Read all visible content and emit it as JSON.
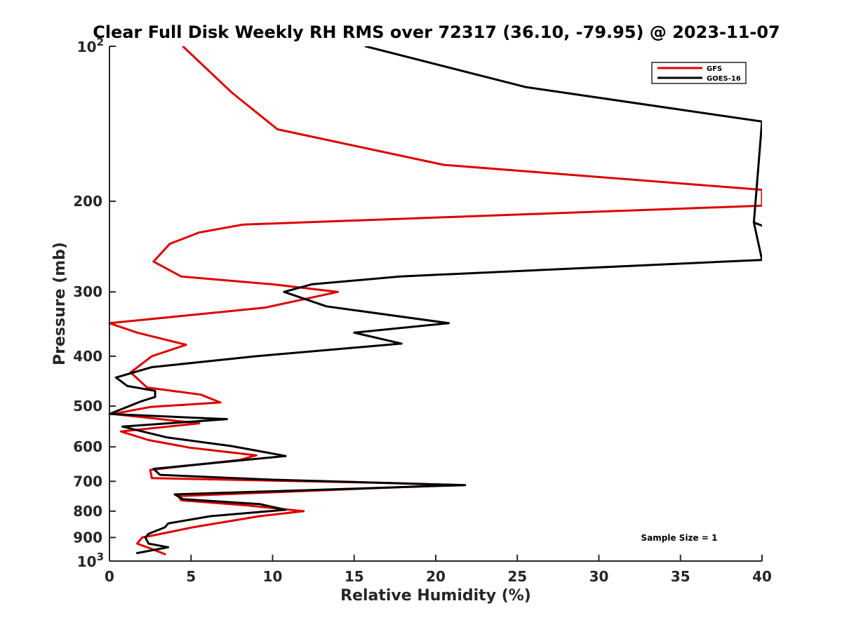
{
  "chart_data": {
    "type": "line",
    "title": "Clear Full Disk Weekly RH RMS over 72317 (36.10, -79.95) @ 2023-11-07",
    "xlabel": "Relative Humidity (%)",
    "ylabel": "Pressure (mb)",
    "xlim": [
      0,
      40
    ],
    "ylim": [
      100,
      1000
    ],
    "y_scale": "log",
    "y_reversed": true,
    "x_ticks": [
      "0",
      "5",
      "10",
      "15",
      "20",
      "25",
      "30",
      "35",
      "40"
    ],
    "y_ticks": [
      {
        "value": 100,
        "base": "10",
        "exp": "2"
      },
      {
        "value": 200,
        "label": "200"
      },
      {
        "value": 300,
        "label": "300"
      },
      {
        "value": 400,
        "label": "400"
      },
      {
        "value": 500,
        "label": "500"
      },
      {
        "value": 600,
        "label": "600"
      },
      {
        "value": 700,
        "label": "700"
      },
      {
        "value": 800,
        "label": "800"
      },
      {
        "value": 900,
        "label": "900"
      },
      {
        "value": 1000,
        "base": "10",
        "exp": "3"
      }
    ],
    "legend_position": "top-right",
    "grid": false,
    "annotation": "Sample Size = 1",
    "series": [
      {
        "name": "GFS",
        "color": "#dd0000",
        "points": [
          [
            4.5,
            100
          ],
          [
            7.5,
            123
          ],
          [
            10.3,
            145
          ],
          [
            20.5,
            170
          ],
          [
            40,
            190
          ],
          [
            40,
            204
          ],
          [
            8.2,
            222
          ],
          [
            5.5,
            230
          ],
          [
            3.7,
            242
          ],
          [
            2.7,
            262
          ],
          [
            4.4,
            280
          ],
          [
            10,
            290
          ],
          [
            14,
            300
          ],
          [
            9.5,
            322
          ],
          [
            0,
            345
          ],
          [
            1.7,
            360
          ],
          [
            4.7,
            380
          ],
          [
            2.6,
            400
          ],
          [
            1.3,
            430
          ],
          [
            2.3,
            460
          ],
          [
            5.6,
            475
          ],
          [
            6.8,
            492
          ],
          [
            2.5,
            502
          ],
          [
            0.2,
            518
          ],
          [
            5.5,
            540
          ],
          [
            0.7,
            560
          ],
          [
            2.4,
            582
          ],
          [
            4.9,
            602
          ],
          [
            9.0,
            623
          ],
          [
            8.0,
            636
          ],
          [
            2.5,
            665
          ],
          [
            2.6,
            690
          ],
          [
            17,
            705
          ],
          [
            21,
            712
          ],
          [
            4.2,
            748
          ],
          [
            4.4,
            762
          ],
          [
            8.5,
            780
          ],
          [
            11.9,
            800
          ],
          [
            9.2,
            818
          ],
          [
            5.1,
            860
          ],
          [
            2.8,
            890
          ],
          [
            2.0,
            900
          ],
          [
            1.7,
            925
          ],
          [
            2.7,
            950
          ],
          [
            3.4,
            970
          ]
        ]
      },
      {
        "name": "GOES-16",
        "color": "#000000",
        "points": [
          [
            15.7,
            100
          ],
          [
            25.5,
            120
          ],
          [
            40,
            140
          ],
          [
            39.5,
            220
          ],
          [
            40,
            223
          ],
          [
            39.5,
            220
          ],
          [
            40,
            260
          ],
          [
            17.8,
            280
          ],
          [
            12.4,
            290
          ],
          [
            10.7,
            300
          ],
          [
            13.3,
            320
          ],
          [
            20.8,
            345
          ],
          [
            15.0,
            360
          ],
          [
            17.9,
            378
          ],
          [
            9.0,
            400
          ],
          [
            2.6,
            420
          ],
          [
            0.4,
            440
          ],
          [
            1.1,
            457
          ],
          [
            2.8,
            467
          ],
          [
            2.8,
            480
          ],
          [
            1.9,
            490
          ],
          [
            0,
            518
          ],
          [
            7.2,
            530
          ],
          [
            0.8,
            548
          ],
          [
            3.5,
            575
          ],
          [
            7.5,
            598
          ],
          [
            10.8,
            625
          ],
          [
            7.9,
            638
          ],
          [
            2.7,
            662
          ],
          [
            3.1,
            680
          ],
          [
            10,
            695
          ],
          [
            21.8,
            712
          ],
          [
            4.0,
            742
          ],
          [
            4.5,
            758
          ],
          [
            9.2,
            775
          ],
          [
            10.8,
            795
          ],
          [
            6.2,
            818
          ],
          [
            3.6,
            845
          ],
          [
            3.4,
            860
          ],
          [
            2.4,
            885
          ],
          [
            2.2,
            900
          ],
          [
            2.4,
            925
          ],
          [
            3.6,
            940
          ],
          [
            1.7,
            965
          ]
        ]
      }
    ]
  }
}
